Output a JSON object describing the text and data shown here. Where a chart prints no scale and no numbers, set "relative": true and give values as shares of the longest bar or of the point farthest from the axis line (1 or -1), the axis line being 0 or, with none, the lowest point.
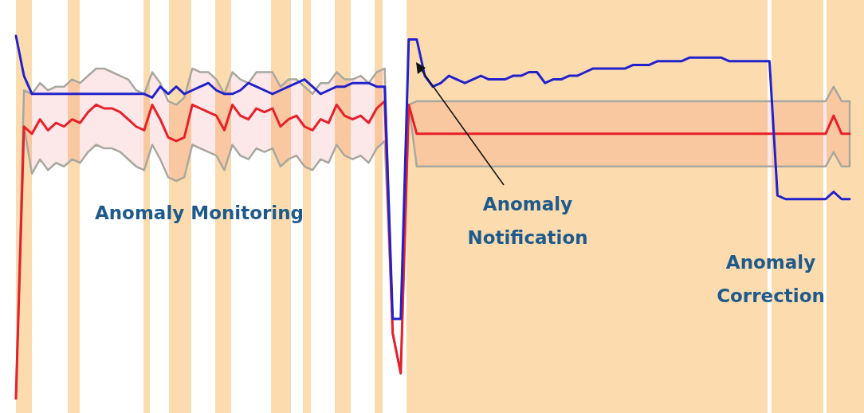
{
  "chart_data": {
    "type": "line",
    "relative": true,
    "categories": [
      null,
      null,
      null,
      null,
      null,
      null,
      null,
      null,
      null,
      null,
      null,
      null,
      null,
      null,
      null,
      null,
      null,
      null,
      null,
      null,
      null,
      null,
      null,
      null,
      null,
      null,
      null,
      null,
      null,
      null,
      null,
      null,
      null,
      null,
      null,
      null,
      null,
      null,
      null,
      null,
      null,
      null,
      null,
      null,
      null,
      null,
      null,
      null,
      null,
      null,
      null,
      null,
      null,
      null,
      null,
      null,
      null,
      null,
      null,
      null,
      null,
      null,
      null,
      null,
      null,
      null,
      null,
      null,
      null,
      null,
      null,
      null,
      null,
      null,
      null,
      null,
      null,
      null,
      null,
      null,
      null,
      null,
      null,
      null,
      null,
      null,
      null,
      null,
      null,
      null,
      null,
      null,
      null,
      null,
      null,
      null,
      null,
      null,
      null,
      null,
      null,
      null,
      null,
      null,
      null
    ],
    "annotations": [
      "Anomaly Monitoring",
      "Anomaly Notification",
      "Anomaly Correction"
    ],
    "series": [
      {
        "color": "#e8202a",
        "values": [
          0,
          0.75,
          0.73,
          0.77,
          0.74,
          0.76,
          0.75,
          0.77,
          0.76,
          0.79,
          0.81,
          0.8,
          0.8,
          0.79,
          0.77,
          0.75,
          0.74,
          0.81,
          0.77,
          0.72,
          0.71,
          0.72,
          0.81,
          0.8,
          0.79,
          0.78,
          0.74,
          0.81,
          0.78,
          0.77,
          0.8,
          0.79,
          0.8,
          0.75,
          0.77,
          0.78,
          0.75,
          0.74,
          0.77,
          0.76,
          0.81,
          0.78,
          0.77,
          0.78,
          0.76,
          0.8,
          0.82,
          0.18,
          0.07,
          0.81,
          0.73,
          0.73,
          0.73,
          0.73,
          0.73,
          0.73,
          0.73,
          0.73,
          0.73,
          0.73,
          0.73,
          0.73,
          0.73,
          0.73,
          0.73,
          0.73,
          0.73,
          0.73,
          0.73,
          0.73,
          0.73,
          0.73,
          0.73,
          0.73,
          0.73,
          0.73,
          0.73,
          0.73,
          0.73,
          0.73,
          0.73,
          0.73,
          0.73,
          0.73,
          0.73,
          0.73,
          0.73,
          0.73,
          0.73,
          0.73,
          0.73,
          0.73,
          0.73,
          0.73,
          0.73,
          0.73,
          0.73,
          0.73,
          0.73,
          0.73,
          0.73,
          0.73,
          0.78,
          0.73,
          0.73
        ],
        "upper": [
          0,
          0.85,
          0.84,
          0.87,
          0.85,
          0.86,
          0.86,
          0.88,
          0.87,
          0.89,
          0.91,
          0.91,
          0.9,
          0.89,
          0.88,
          0.85,
          0.84,
          0.9,
          0.87,
          0.82,
          0.81,
          0.83,
          0.91,
          0.9,
          0.9,
          0.88,
          0.84,
          0.9,
          0.88,
          0.87,
          0.9,
          0.9,
          0.9,
          0.86,
          0.88,
          0.88,
          0.86,
          0.84,
          0.87,
          0.87,
          0.9,
          0.88,
          0.88,
          0.89,
          0.87,
          0.9,
          0.91,
          0.18,
          0.07,
          0.81,
          0.82,
          0.82,
          0.82,
          0.82,
          0.82,
          0.82,
          0.82,
          0.82,
          0.82,
          0.82,
          0.82,
          0.82,
          0.82,
          0.82,
          0.82,
          0.82,
          0.82,
          0.82,
          0.82,
          0.82,
          0.82,
          0.82,
          0.82,
          0.82,
          0.82,
          0.82,
          0.82,
          0.82,
          0.82,
          0.82,
          0.82,
          0.82,
          0.82,
          0.82,
          0.82,
          0.82,
          0.82,
          0.82,
          0.82,
          0.82,
          0.82,
          0.82,
          0.82,
          0.82,
          0.82,
          0.82,
          0.82,
          0.82,
          0.82,
          0.82,
          0.82,
          0.82,
          0.86,
          0.82,
          0.82
        ],
        "lower": [
          0,
          0.75,
          0.62,
          0.66,
          0.63,
          0.65,
          0.64,
          0.66,
          0.65,
          0.68,
          0.7,
          0.69,
          0.69,
          0.68,
          0.66,
          0.64,
          0.63,
          0.7,
          0.66,
          0.61,
          0.6,
          0.61,
          0.7,
          0.69,
          0.68,
          0.67,
          0.63,
          0.7,
          0.67,
          0.66,
          0.69,
          0.68,
          0.69,
          0.64,
          0.66,
          0.67,
          0.64,
          0.63,
          0.66,
          0.65,
          0.7,
          0.67,
          0.66,
          0.67,
          0.65,
          0.69,
          0.71,
          0.18,
          0.07,
          0.81,
          0.64,
          0.64,
          0.64,
          0.64,
          0.64,
          0.64,
          0.64,
          0.64,
          0.64,
          0.64,
          0.64,
          0.64,
          0.64,
          0.64,
          0.64,
          0.64,
          0.64,
          0.64,
          0.64,
          0.64,
          0.64,
          0.64,
          0.64,
          0.64,
          0.64,
          0.64,
          0.64,
          0.64,
          0.64,
          0.64,
          0.64,
          0.64,
          0.64,
          0.64,
          0.64,
          0.64,
          0.64,
          0.64,
          0.64,
          0.64,
          0.64,
          0.64,
          0.64,
          0.64,
          0.64,
          0.64,
          0.64,
          0.64,
          0.64,
          0.64,
          0.64,
          0.64,
          0.68,
          0.64,
          0.64
        ]
      },
      {
        "color": "#2222cc",
        "values": [
          1,
          0.89,
          0.84,
          0.84,
          0.84,
          0.84,
          0.84,
          0.84,
          0.84,
          0.84,
          0.84,
          0.84,
          0.84,
          0.84,
          0.84,
          0.84,
          0.84,
          0.83,
          0.86,
          0.84,
          0.86,
          0.84,
          0.85,
          0.86,
          0.87,
          0.85,
          0.84,
          0.84,
          0.85,
          0.87,
          0.86,
          0.85,
          0.84,
          0.85,
          0.86,
          0.87,
          0.88,
          0.86,
          0.84,
          0.85,
          0.86,
          0.86,
          0.87,
          0.87,
          0.87,
          0.86,
          0.86,
          0.22,
          0.22,
          0.99,
          0.99,
          0.89,
          0.86,
          0.87,
          0.89,
          0.88,
          0.87,
          0.88,
          0.89,
          0.88,
          0.88,
          0.88,
          0.89,
          0.89,
          0.9,
          0.9,
          0.87,
          0.88,
          0.88,
          0.89,
          0.89,
          0.9,
          0.91,
          0.91,
          0.91,
          0.91,
          0.91,
          0.92,
          0.92,
          0.92,
          0.93,
          0.93,
          0.93,
          0.93,
          0.94,
          0.94,
          0.94,
          0.94,
          0.94,
          0.93,
          0.93,
          0.93,
          0.93,
          0.93,
          0.93,
          0.56,
          0.55,
          0.55,
          0.55,
          0.55,
          0.55,
          0.55,
          0.57,
          0.55,
          0.55
        ]
      }
    ]
  }
}
